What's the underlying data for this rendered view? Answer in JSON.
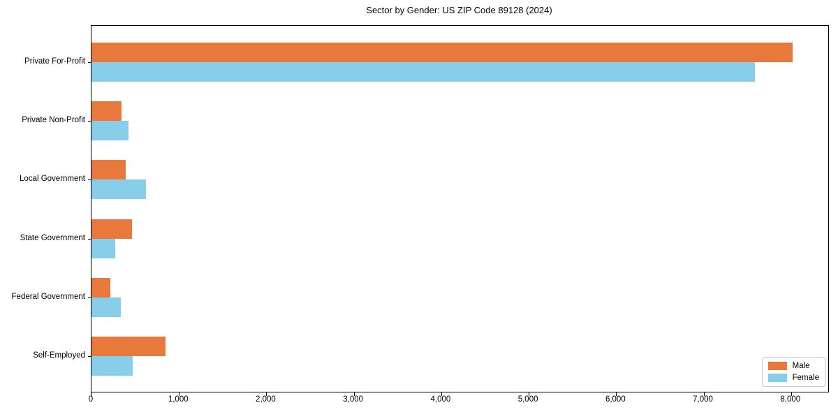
{
  "chart_data": {
    "type": "bar",
    "orientation": "horizontal",
    "title": "Sector by Gender: US ZIP Code 89128 (2024)",
    "categories": [
      "Private For-Profit",
      "Private Non-Profit",
      "Local Government",
      "State Government",
      "Federal Government",
      "Self-Employed"
    ],
    "series": [
      {
        "name": "Male",
        "color": "#e8783c",
        "values": [
          8020,
          340,
          390,
          460,
          215,
          845
        ]
      },
      {
        "name": "Female",
        "color": "#87ceeb",
        "values": [
          7590,
          425,
          620,
          270,
          335,
          470
        ]
      }
    ],
    "xlim": [
      0,
      8425
    ],
    "xticks": [
      0,
      1000,
      2000,
      3000,
      4000,
      5000,
      6000,
      7000,
      8000
    ],
    "xtick_labels": [
      "0",
      "1,000",
      "2,000",
      "3,000",
      "4,000",
      "5,000",
      "6,000",
      "7,000",
      "8,000"
    ],
    "ylabel": "",
    "xlabel": "",
    "grid": false,
    "legend_position": "lower right",
    "legend_entries": [
      "Male",
      "Female"
    ]
  }
}
